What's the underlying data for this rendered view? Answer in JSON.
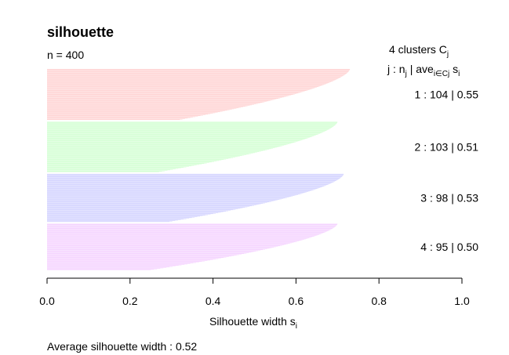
{
  "chart_data": {
    "type": "bar",
    "orientation": "horizontal",
    "title": "silhouette",
    "subtitle": "n = 400",
    "xlabel": "Silhouette width s",
    "xlabel_subscript": "i",
    "xlim": [
      0.0,
      1.0
    ],
    "xticks": [
      0.0,
      0.2,
      0.4,
      0.6,
      0.8,
      1.0
    ],
    "xtick_labels": [
      "0.0",
      "0.2",
      "0.4",
      "0.6",
      "0.8",
      "1.0"
    ],
    "legend_header": {
      "line1_prefix": "4  clusters  C",
      "line1_sub": "j",
      "line2_a": "j :  n",
      "line2_sub1": "j",
      "line2_b": " | ave",
      "line2_sub2": "i∈Cj",
      "line2_c": "  s",
      "line2_sub3": "i"
    },
    "clusters": [
      {
        "label": "1 :   104  |  0.55",
        "id": 1,
        "n": 104,
        "avg_width": 0.55,
        "max_width": 0.73,
        "color": "#ffbfbf"
      },
      {
        "label": "2 :   103  |  0.51",
        "id": 2,
        "n": 103,
        "avg_width": 0.51,
        "max_width": 0.7,
        "color": "#bfffbf"
      },
      {
        "label": "3 :   98  |  0.53",
        "id": 3,
        "n": 98,
        "avg_width": 0.53,
        "max_width": 0.715,
        "color": "#bfbfff"
      },
      {
        "label": "4 :   95  |  0.50",
        "id": 4,
        "n": 95,
        "avg_width": 0.5,
        "max_width": 0.7,
        "color": "#f0bfff"
      }
    ],
    "footer": "Average silhouette width :  0.52"
  }
}
